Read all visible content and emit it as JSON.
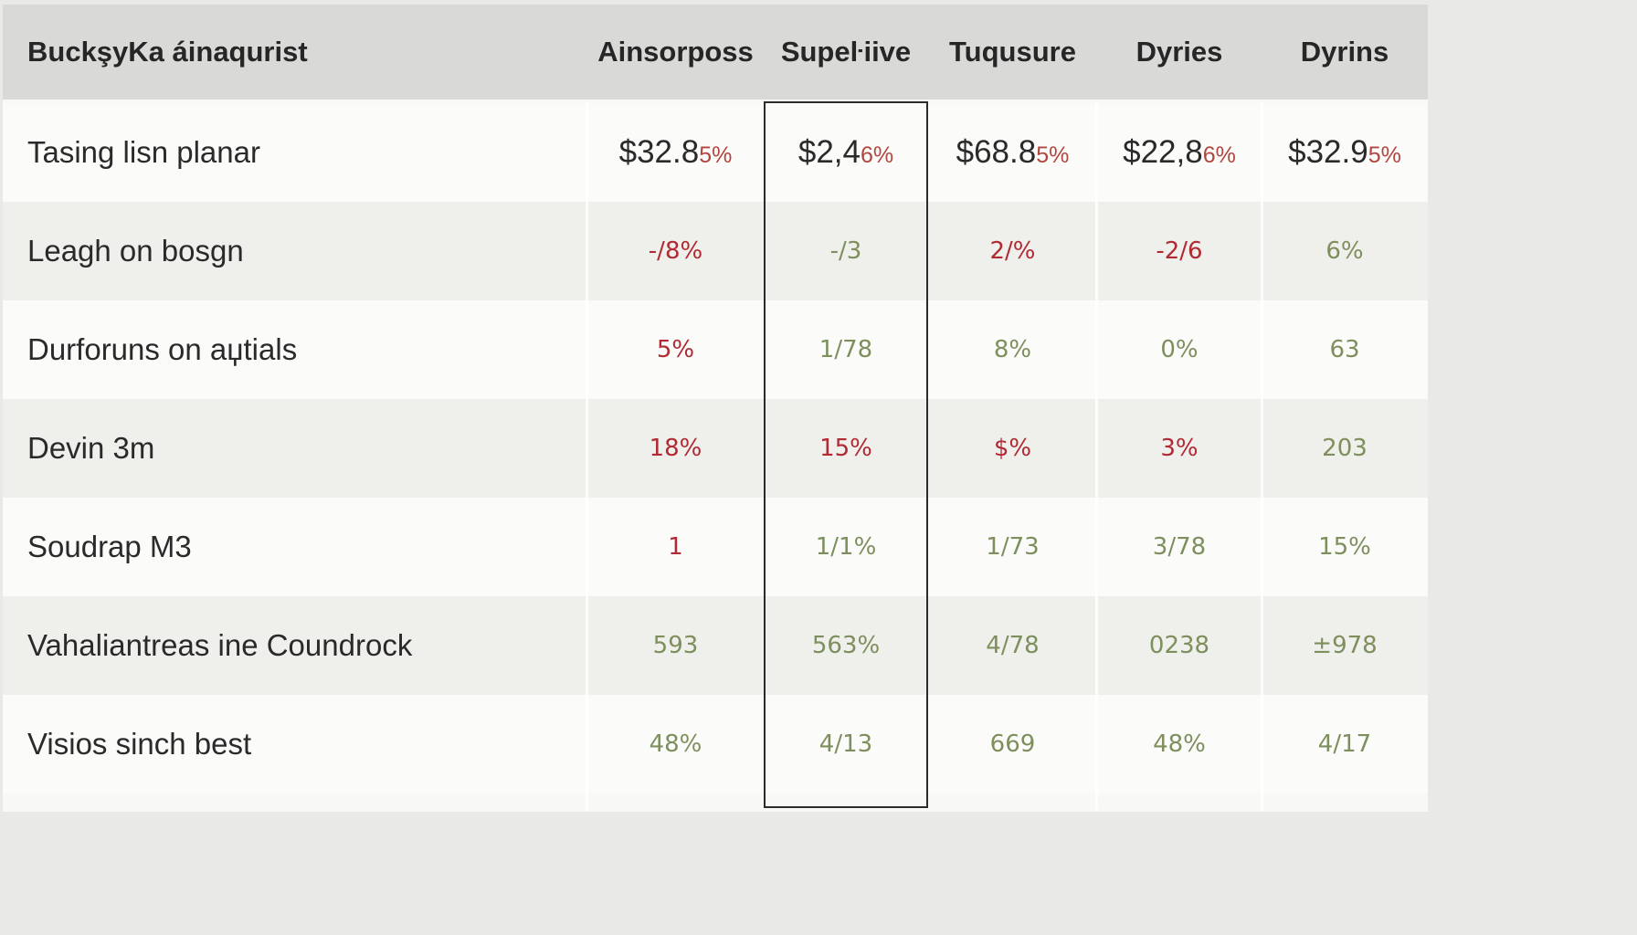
{
  "header": {
    "title": "BuckşyKa áinaqurist",
    "columns": [
      "Ainsorposs",
      "Supeŀiive",
      "Tuqusure",
      "Dyries",
      "Dyrins"
    ]
  },
  "rows": [
    {
      "label": "Tasing lisn planar",
      "values": [
        {
          "main": "$32.8",
          "suffix": "5%"
        },
        {
          "main": "$2,4",
          "suffix": "6%"
        },
        {
          "main": "$68.8",
          "suffix": "5%"
        },
        {
          "main": "$22,8",
          "suffix": "6%"
        },
        {
          "main": "$32.9",
          "suffix": "5%"
        }
      ]
    },
    {
      "label": "Leagh on bosgn",
      "values": [
        {
          "text": "-/8%",
          "color": "red"
        },
        {
          "text": "-/3",
          "color": "green"
        },
        {
          "text": "2/%",
          "color": "red"
        },
        {
          "text": "-2/6",
          "color": "red"
        },
        {
          "text": "6%",
          "color": "green"
        }
      ]
    },
    {
      "label": "Durforuns on aџtials",
      "values": [
        {
          "text": "5%",
          "color": "red"
        },
        {
          "text": "1/78",
          "color": "green"
        },
        {
          "text": "8%",
          "color": "green"
        },
        {
          "text": "0%",
          "color": "green"
        },
        {
          "text": "63",
          "color": "green"
        }
      ]
    },
    {
      "label": "Devin 3m",
      "values": [
        {
          "text": "18%",
          "color": "red"
        },
        {
          "text": "15%",
          "color": "red"
        },
        {
          "text": "$%",
          "color": "red"
        },
        {
          "text": "3%",
          "color": "red"
        },
        {
          "text": "203",
          "color": "green"
        }
      ]
    },
    {
      "label": "Soudrap M3",
      "values": [
        {
          "text": "1",
          "color": "red"
        },
        {
          "text": "1/1%",
          "color": "green"
        },
        {
          "text": "1/73",
          "color": "green"
        },
        {
          "text": "3/78",
          "color": "green"
        },
        {
          "text": "15%",
          "color": "green"
        }
      ]
    },
    {
      "label": "Vahaliantreas ine Coundrock",
      "values": [
        {
          "text": "593",
          "color": "green"
        },
        {
          "text": "563%",
          "color": "green"
        },
        {
          "text": "4/78",
          "color": "green"
        },
        {
          "text": "0238",
          "color": "green"
        },
        {
          "text": "±978",
          "color": "green"
        }
      ]
    },
    {
      "label": "Visios sinch best",
      "values": [
        {
          "text": "48%",
          "color": "green"
        },
        {
          "text": "4/13",
          "color": "green"
        },
        {
          "text": "669",
          "color": "green"
        },
        {
          "text": "48%",
          "color": "green"
        },
        {
          "text": "4/17",
          "color": "green"
        }
      ]
    }
  ],
  "colors": {
    "header_bg": "#d9d9d7",
    "negative": "#b12a33",
    "positive": "#7d8f5d"
  }
}
